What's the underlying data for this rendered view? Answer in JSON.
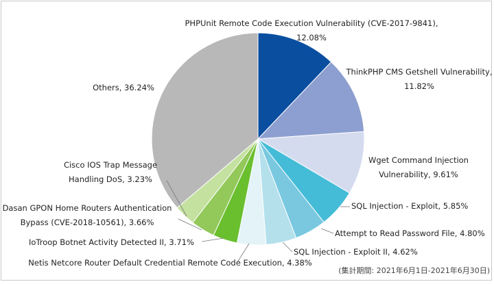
{
  "chart_data": {
    "type": "pie",
    "title": "",
    "start_angle_deg": 0,
    "direction": "clockwise",
    "legend": "none",
    "slices": [
      {
        "label_lines": [
          "PHPUnit Remote Code Execution Vulnerability (CVE-2017-9841),",
          "12.08%"
        ],
        "value": 12.08,
        "color": "#0a4ea0"
      },
      {
        "label_lines": [
          "ThinkPHP CMS Getshell Vulnerability,",
          "11.82%"
        ],
        "value": 11.82,
        "color": "#8d9fd0"
      },
      {
        "label_lines": [
          "Wget Command Injection",
          "Vulnerability, 9.61%"
        ],
        "value": 9.61,
        "color": "#d5dbef"
      },
      {
        "label_lines": [
          "SQL Injection - Exploit, 5.85%"
        ],
        "value": 5.85,
        "color": "#44bcd8"
      },
      {
        "label_lines": [
          "Attempt to Read Password File, 4.80%"
        ],
        "value": 4.8,
        "color": "#79c8e0"
      },
      {
        "label_lines": [
          "SQL Injection - Exploit II, 4.62%"
        ],
        "value": 4.62,
        "color": "#b4e0ec"
      },
      {
        "label_lines": [
          "Netis Netcore Router Default Credential Remote Code Execution, 4.38%"
        ],
        "value": 4.38,
        "color": "#e3f3f8"
      },
      {
        "label_lines": [
          "IoTroop Botnet Activity Detected II, 3.71%"
        ],
        "value": 3.71,
        "color": "#6abf2f"
      },
      {
        "label_lines": [
          "Dasan GPON Home Routers Authentication",
          "Bypass (CVE-2018-10561), 3.66%"
        ],
        "value": 3.66,
        "color": "#93c85a"
      },
      {
        "label_lines": [
          "Cisco IOS Trap Message",
          "Handling DoS, 3.23%"
        ],
        "value": 3.23,
        "color": "#c4e1a0"
      },
      {
        "label_lines": [
          "Others, 36.24%"
        ],
        "value": 36.24,
        "color": "#b8b8b8"
      }
    ],
    "footnote": "(集計期間: 2021年6月1日-2021年6月30日)"
  }
}
